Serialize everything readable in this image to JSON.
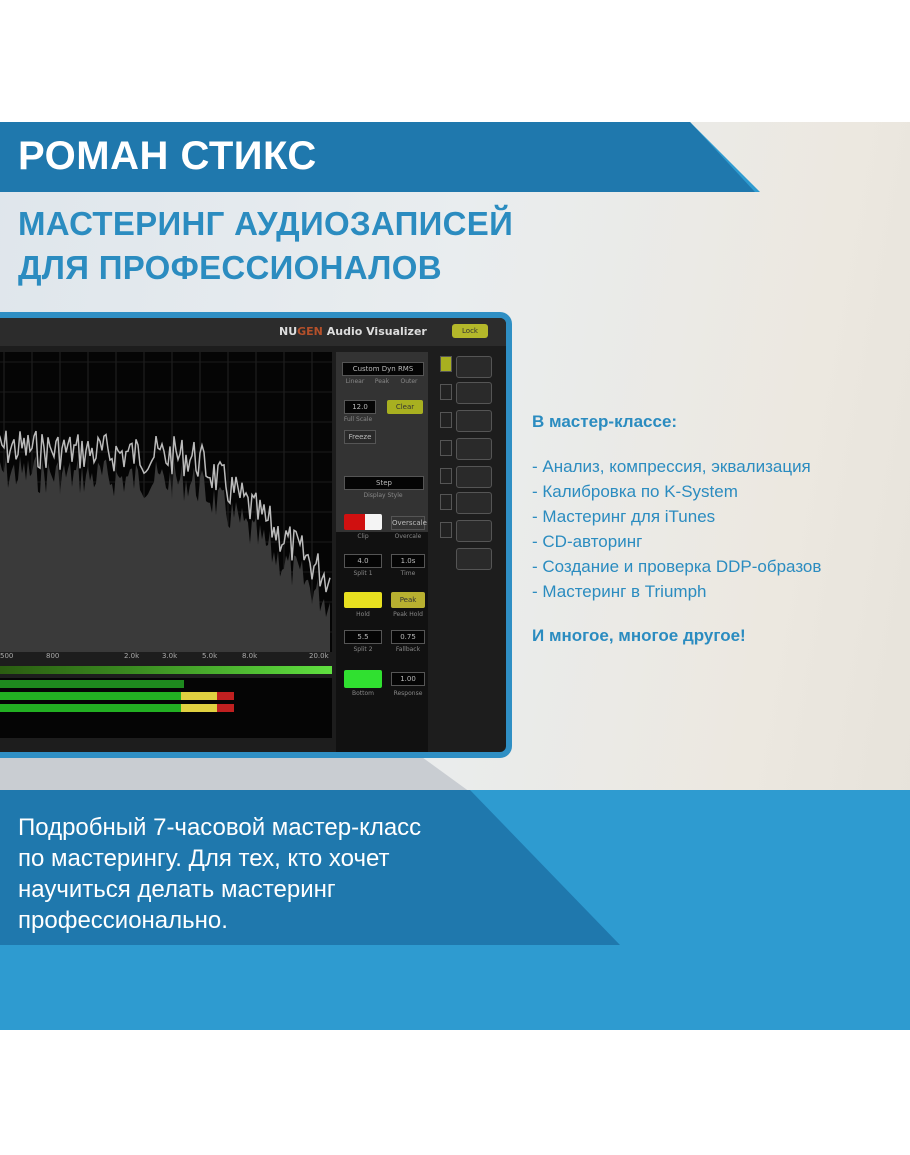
{
  "header": {
    "author": "РОМАН СТИКС",
    "subtitle_line1": "МАСТЕРИНГ АУДИОЗАПИСЕЙ",
    "subtitle_line2": "ДЛЯ ПРОФЕССИОНАЛОВ"
  },
  "plugin": {
    "brand_prefix": "NU",
    "brand_accent": "GEN",
    "product": "Audio Visualizer",
    "lock_label": "Lock",
    "mode": "Custom Dyn RMS",
    "mode_options": [
      "Linear",
      "Peak",
      "Outer"
    ],
    "full_scale_value": "12.0",
    "full_scale_label": "Full Scale",
    "green_button": "Clear",
    "freeze_label": "Freeze",
    "display_style_value": "Step",
    "display_style_label": "Display Style",
    "clip_label": "Clip",
    "overscale_button": "Overscale",
    "overscale_label": "Overcale",
    "split1_value": "4.0",
    "split1_label": "Split 1",
    "time_value": "1.0s",
    "time_label": "Time",
    "peak_button": "Peak",
    "hold_label": "Hold",
    "peak_hold_label": "Peak Hold",
    "split2_value": "5.5",
    "split2_label": "Split 2",
    "fallback_value": "0.75",
    "fallback_label": "Fallback",
    "bottom_label": "Bottom",
    "response_value": "1.00",
    "response_label": "Response",
    "freq_labels": [
      "500",
      "800",
      "2.0k",
      "3.0k",
      "5.0k",
      "8.0k",
      "20.0k"
    ],
    "colors": {
      "border": "#2f8fc4",
      "clip": "#d01010",
      "hold": "#e8e020",
      "bottom": "#30e030",
      "accent": "#b4b82a"
    }
  },
  "info": {
    "heading": "В мастер-классе:",
    "items": [
      "- Анализ, компрессия, эквализация",
      "- Калибровка по K-System",
      "- Мастеринг для iTunes",
      "- CD-авторинг",
      "- Создание и проверка DDP-образов",
      "- Мастеринг в Triumph"
    ],
    "footer": "И многое, многое другое!"
  },
  "bottom": {
    "lines": [
      "Подробный 7-часовой мастер-класс",
      "по мастерингу.  Для тех, кто хочет",
      "научиться делать мастеринг",
      "профессионально."
    ]
  },
  "colors": {
    "brand_blue": "#2b8cc0",
    "dark_blue": "#1f78ad",
    "light_blue": "#2e9bd0"
  }
}
